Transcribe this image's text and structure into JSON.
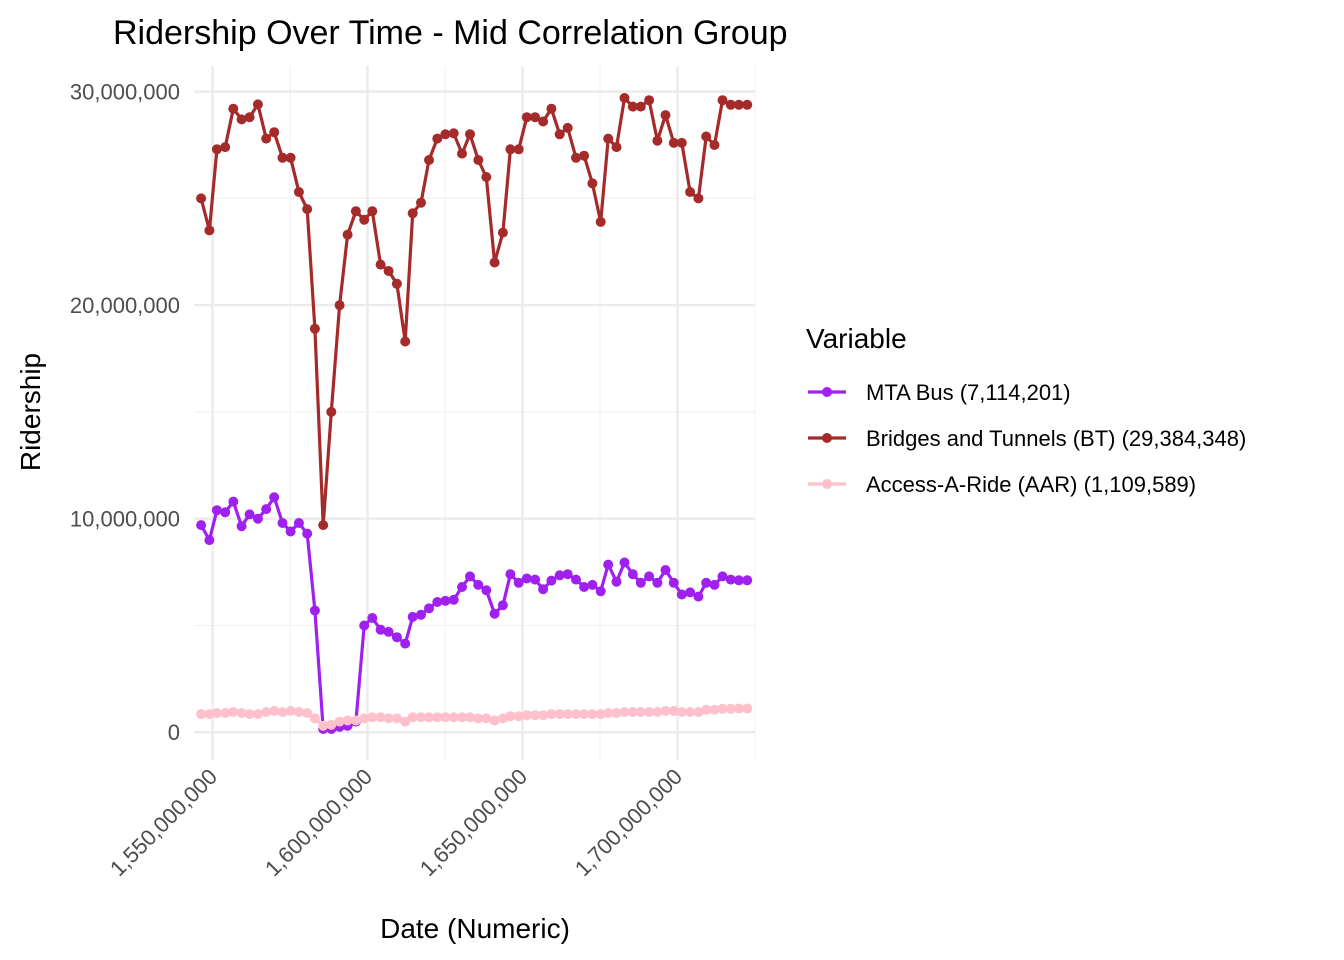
{
  "chart_data": {
    "type": "line",
    "title": "Ridership Over Time - Mid Correlation Group",
    "xlabel": "Date (Numeric)",
    "ylabel": "Ridership",
    "xlim": [
      1544000000,
      1725000000
    ],
    "ylim": [
      -1300000,
      31200000
    ],
    "x_ticks": [
      1550000000,
      1600000000,
      1650000000,
      1700000000
    ],
    "x_tick_labels": [
      "1,550,000,000",
      "1,600,000,000",
      "1,650,000,000",
      "1,700,000,000"
    ],
    "y_ticks": [
      0,
      10000000,
      20000000,
      30000000
    ],
    "y_tick_labels": [
      "0",
      "10,000,000",
      "20,000,000",
      "30,000,000"
    ],
    "grid": true,
    "legend": {
      "title": "Variable",
      "position": "right"
    },
    "x": [
      1546300800,
      1548979200,
      1551398400,
      1554076800,
      1556668800,
      1559347200,
      1561939200,
      1564617600,
      1567296000,
      1569888000,
      1572566400,
      1575158400,
      1577836800,
      1580515200,
      1583020800,
      1585699200,
      1588291200,
      1590969600,
      1593561600,
      1596240000,
      1598918400,
      1601510400,
      1604188800,
      1606780800,
      1609459200,
      1612137600,
      1614556800,
      1617235200,
      1619827200,
      1622505600,
      1625097600,
      1627776000,
      1630454400,
      1633046400,
      1635724800,
      1638316800,
      1640995200,
      1643673600,
      1646092800,
      1648771200,
      1651363200,
      1654041600,
      1656633600,
      1659312000,
      1661990400,
      1664582400,
      1667260800,
      1669852800,
      1672531200,
      1675209600,
      1677628800,
      1680307200,
      1682899200,
      1685577600,
      1688169600,
      1690848000,
      1693526400,
      1696118400,
      1698796800,
      1701388800,
      1704067200,
      1706745600,
      1709251200,
      1711929600,
      1714521600,
      1717200000,
      1719792000,
      1722470400
    ],
    "series": [
      {
        "name": "MTA Bus (7,114,201)",
        "color": "#a020f0",
        "values": [
          9700000,
          9000000,
          10400000,
          10300000,
          10800000,
          9650000,
          10200000,
          10000000,
          10450000,
          11000000,
          9800000,
          9400000,
          9800000,
          9300000,
          5700000,
          150000,
          150000,
          250000,
          300000,
          500000,
          5000000,
          5350000,
          4800000,
          4700000,
          4450000,
          4150000,
          5400000,
          5500000,
          5800000,
          6100000,
          6150000,
          6200000,
          6800000,
          7300000,
          6900000,
          6650000,
          5550000,
          5950000,
          7400000,
          7000000,
          7200000,
          7150000,
          6700000,
          7100000,
          7350000,
          7400000,
          7150000,
          6800000,
          6900000,
          6600000,
          7850000,
          7050000,
          7950000,
          7400000,
          7000000,
          7300000,
          7000000,
          7600000,
          7000000,
          6450000,
          6550000,
          6350000,
          7000000,
          6900000,
          7300000,
          7150000,
          7114201,
          7114201
        ]
      },
      {
        "name": "Bridges and Tunnels (BT) (29,384,348)",
        "color": "#a52a2a",
        "values": [
          25000000,
          23500000,
          27300000,
          27400000,
          29200000,
          28700000,
          28800000,
          29400000,
          27800000,
          28100000,
          26900000,
          26900000,
          25300000,
          24500000,
          18900000,
          9700000,
          15000000,
          20000000,
          23300000,
          24400000,
          24000000,
          24400000,
          21900000,
          21600000,
          21000000,
          18300000,
          24300000,
          24800000,
          26800000,
          27800000,
          28000000,
          28050000,
          27100000,
          28000000,
          26800000,
          26000000,
          22000000,
          23400000,
          27300000,
          27300000,
          28800000,
          28800000,
          28600000,
          29200000,
          28000000,
          28300000,
          26900000,
          27000000,
          25700000,
          23900000,
          27800000,
          27400000,
          29700000,
          29300000,
          29300000,
          29600000,
          27700000,
          28900000,
          27600000,
          27600000,
          25300000,
          25000000,
          27900000,
          27500000,
          29600000,
          29384348,
          29384348,
          29384348
        ]
      },
      {
        "name": "Access-A-Ride (AAR) (1,109,589)",
        "color": "#ffc0cb",
        "values": [
          850000,
          850000,
          900000,
          900000,
          950000,
          900000,
          850000,
          850000,
          950000,
          1000000,
          950000,
          1000000,
          950000,
          900000,
          650000,
          300000,
          350000,
          500000,
          550000,
          550000,
          650000,
          700000,
          700000,
          650000,
          650000,
          500000,
          700000,
          700000,
          700000,
          700000,
          700000,
          700000,
          700000,
          700000,
          650000,
          650000,
          550000,
          650000,
          750000,
          750000,
          800000,
          800000,
          800000,
          850000,
          850000,
          850000,
          850000,
          850000,
          850000,
          850000,
          900000,
          900000,
          950000,
          950000,
          950000,
          950000,
          950000,
          1000000,
          1000000,
          950000,
          950000,
          950000,
          1050000,
          1050000,
          1100000,
          1100000,
          1109589,
          1109589
        ]
      }
    ]
  }
}
